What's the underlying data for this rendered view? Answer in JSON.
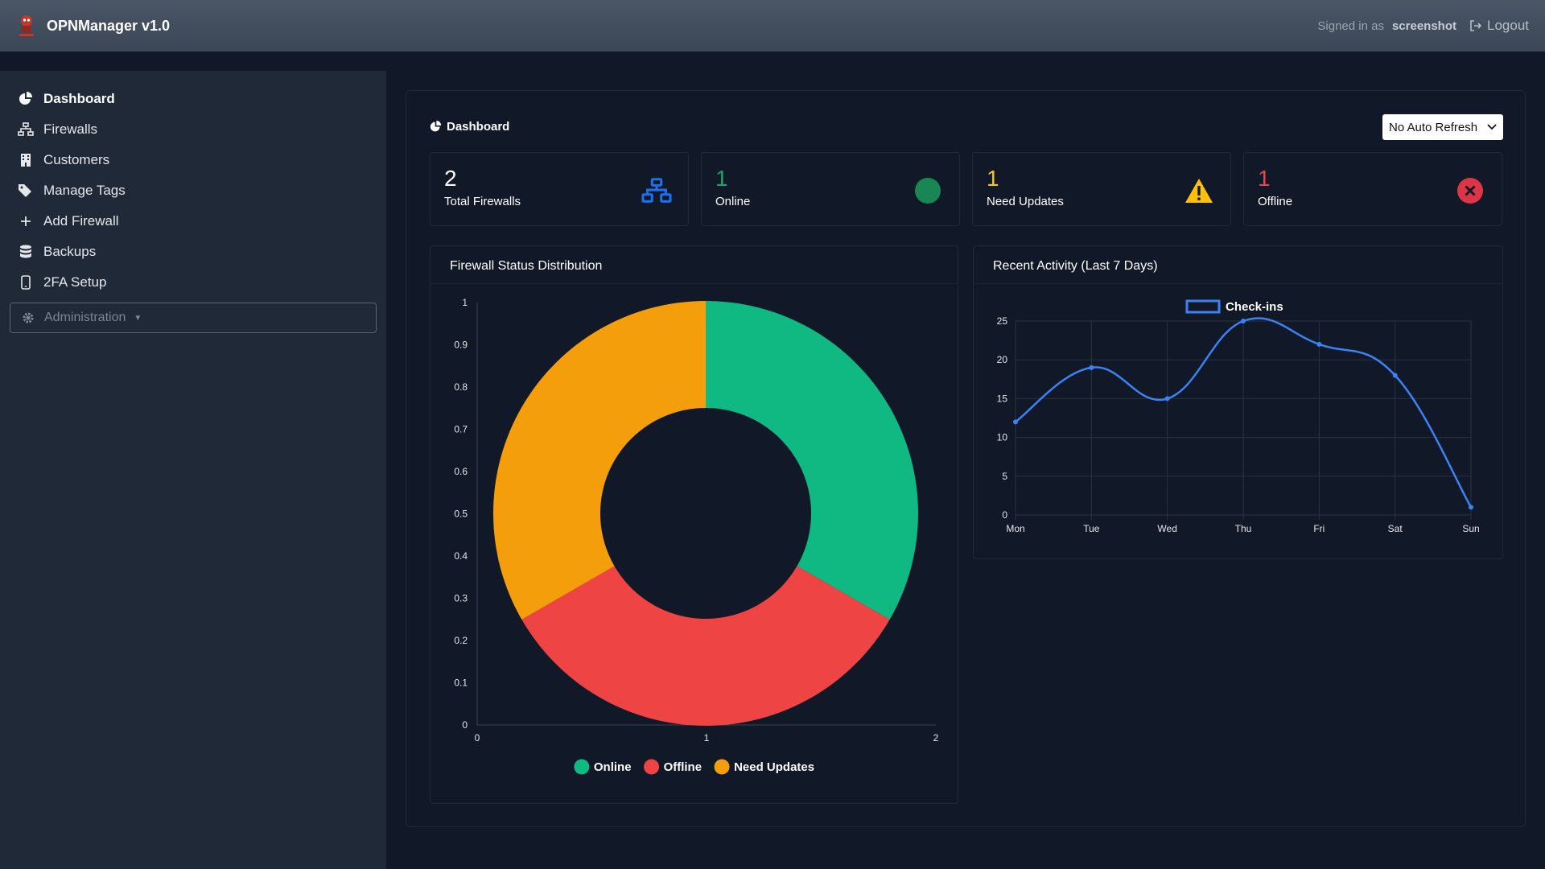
{
  "app": {
    "title": "OPNManager v1.0"
  },
  "user": {
    "signed_in_label": "Signed in as",
    "name": "screenshot",
    "logout_label": "Logout"
  },
  "sidebar": {
    "items": [
      {
        "label": "Dashboard",
        "icon": "chart-pie-icon"
      },
      {
        "label": "Firewalls",
        "icon": "network-icon"
      },
      {
        "label": "Customers",
        "icon": "building-icon"
      },
      {
        "label": "Manage Tags",
        "icon": "tags-icon"
      },
      {
        "label": "Add Firewall",
        "icon": "plus-icon"
      },
      {
        "label": "Backups",
        "icon": "database-icon"
      },
      {
        "label": "2FA Setup",
        "icon": "mobile-icon"
      }
    ],
    "admin_label": "Administration"
  },
  "dashboard": {
    "title": "Dashboard",
    "refresh_value": "No Auto Refresh"
  },
  "cards": [
    {
      "value": "2",
      "label": "Total Firewalls",
      "color": "#ffffff",
      "icon": "network-icon",
      "icon_color": "#1f6feb"
    },
    {
      "value": "1",
      "label": "Online",
      "color": "#22a06b",
      "icon": "online-dot-icon",
      "icon_color": "#198754"
    },
    {
      "value": "1",
      "label": "Need Updates",
      "color": "#f5c518",
      "icon": "warning-icon",
      "icon_color": "#ffc107"
    },
    {
      "value": "1",
      "label": "Offline",
      "color": "#e5484d",
      "icon": "close-circle-icon",
      "icon_color": "#dc3545"
    }
  ],
  "status_panel": {
    "title": "Firewall Status Distribution"
  },
  "activity_panel": {
    "title": "Recent Activity (Last 7 Days)"
  },
  "chart_data": [
    {
      "type": "pie",
      "title": "Firewall Status Distribution",
      "style": "doughnut",
      "labels": [
        "Online",
        "Offline",
        "Need Updates"
      ],
      "values": [
        1,
        1,
        1
      ],
      "colors": [
        "#10b981",
        "#ef4444",
        "#f59e0b"
      ],
      "x_ticks": [
        "0",
        "1",
        "2"
      ],
      "y_ticks": [
        "0",
        "0.1",
        "0.2",
        "0.3",
        "0.4",
        "0.5",
        "0.6",
        "0.7",
        "0.8",
        "0.9",
        "1"
      ],
      "legend": "bottom"
    },
    {
      "type": "line",
      "title": "Recent Activity (Last 7 Days)",
      "categories": [
        "Mon",
        "Tue",
        "Wed",
        "Thu",
        "Fri",
        "Sat",
        "Sun"
      ],
      "series": [
        {
          "name": "Check-ins",
          "values": [
            12,
            19,
            15,
            25,
            22,
            18,
            1
          ],
          "color": "#3b82f6"
        }
      ],
      "ylim": [
        0,
        25
      ],
      "y_ticks": [
        "0",
        "5",
        "10",
        "15",
        "20",
        "25"
      ],
      "grid": true,
      "legend": "top"
    }
  ]
}
